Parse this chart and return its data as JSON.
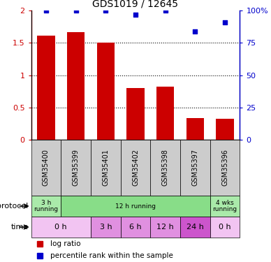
{
  "title": "GDS1019 / 12645",
  "samples": [
    "GSM35400",
    "GSM35399",
    "GSM35401",
    "GSM35402",
    "GSM35398",
    "GSM35397",
    "GSM35396"
  ],
  "log_ratio": [
    1.61,
    1.66,
    1.5,
    0.8,
    0.82,
    0.34,
    0.32
  ],
  "percentile_rank": [
    100,
    100,
    100,
    97,
    100,
    84,
    91
  ],
  "bar_color": "#cc0000",
  "dot_color": "#0000cc",
  "ylim_left": [
    0,
    2
  ],
  "ylim_right": [
    0,
    100
  ],
  "yticks_left": [
    0,
    0.5,
    1,
    1.5,
    2
  ],
  "yticks_right": [
    0,
    25,
    50,
    75,
    100
  ],
  "ytick_labels_left": [
    "0",
    "0.5",
    "1",
    "1.5",
    "2"
  ],
  "ytick_labels_right": [
    "0",
    "25",
    "50",
    "75",
    "100%"
  ],
  "protocol_row": [
    {
      "label": "3 h\nrunning",
      "color": "#aaeaaa",
      "span": [
        0,
        1
      ]
    },
    {
      "label": "12 h running",
      "color": "#88dd88",
      "span": [
        1,
        6
      ]
    },
    {
      "label": "4 wks\nrunning",
      "color": "#aaeaaa",
      "span": [
        6,
        7
      ]
    }
  ],
  "time_row": [
    {
      "label": "0 h",
      "color": "#f2c4f2",
      "span": [
        0,
        2
      ]
    },
    {
      "label": "3 h",
      "color": "#e090e0",
      "span": [
        2,
        3
      ]
    },
    {
      "label": "6 h",
      "color": "#e090e0",
      "span": [
        3,
        4
      ]
    },
    {
      "label": "12 h",
      "color": "#e090e0",
      "span": [
        4,
        5
      ]
    },
    {
      "label": "24 h",
      "color": "#cc55cc",
      "span": [
        5,
        6
      ]
    },
    {
      "label": "0 h",
      "color": "#f2c4f2",
      "span": [
        6,
        7
      ]
    }
  ],
  "legend_items": [
    {
      "label": "log ratio",
      "color": "#cc0000",
      "marker": "s"
    },
    {
      "label": "percentile rank within the sample",
      "color": "#0000cc",
      "marker": "s"
    }
  ],
  "gsm_bg_color": "#cccccc",
  "background_color": "#ffffff"
}
